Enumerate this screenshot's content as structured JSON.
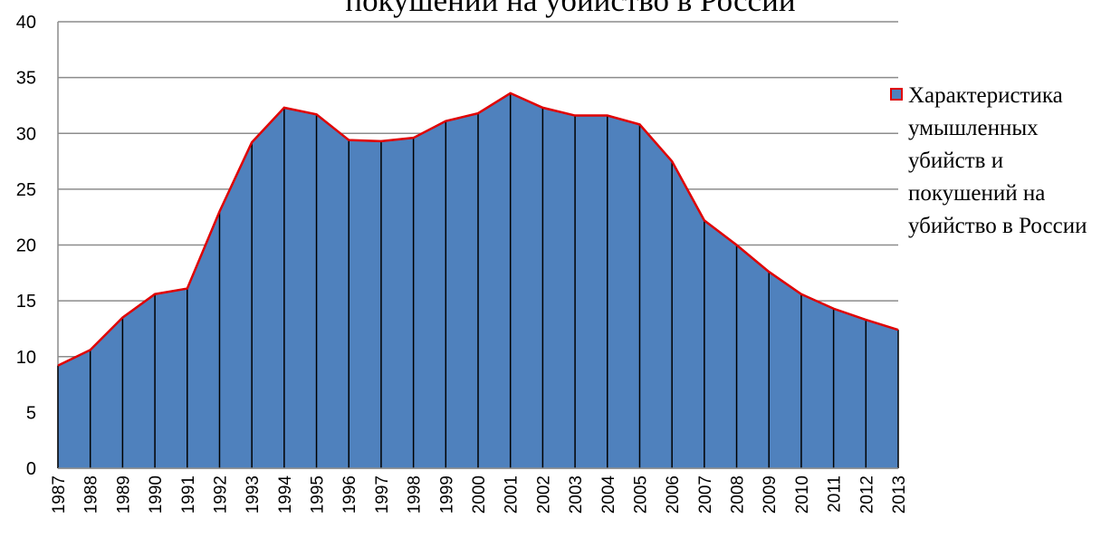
{
  "chart_data": {
    "type": "area",
    "title": "покушений на убийство в России",
    "categories": [
      "1987",
      "1988",
      "1989",
      "1990",
      "1991",
      "1992",
      "1993",
      "1994",
      "1995",
      "1996",
      "1997",
      "1998",
      "1999",
      "2000",
      "2001",
      "2002",
      "2003",
      "2004",
      "2005",
      "2006",
      "2007",
      "2008",
      "2009",
      "2010",
      "2011",
      "2012",
      "2013"
    ],
    "series": [
      {
        "name": "Характеристика умышленных убийств и покушений на убийство в России",
        "color": "#4f81bd",
        "line_color": "#e00000",
        "values": [
          9.2,
          10.6,
          13.5,
          15.6,
          16.1,
          23.0,
          29.2,
          32.3,
          31.7,
          29.4,
          29.3,
          29.6,
          31.1,
          31.8,
          33.6,
          32.3,
          31.6,
          31.6,
          30.8,
          27.5,
          22.2,
          20.0,
          17.6,
          15.6,
          14.3,
          13.3,
          12.4
        ]
      }
    ],
    "ylim": [
      0,
      40
    ],
    "yticks": [
      0,
      5,
      10,
      15,
      20,
      25,
      30,
      35,
      40
    ],
    "grid": true,
    "legend": "right"
  }
}
